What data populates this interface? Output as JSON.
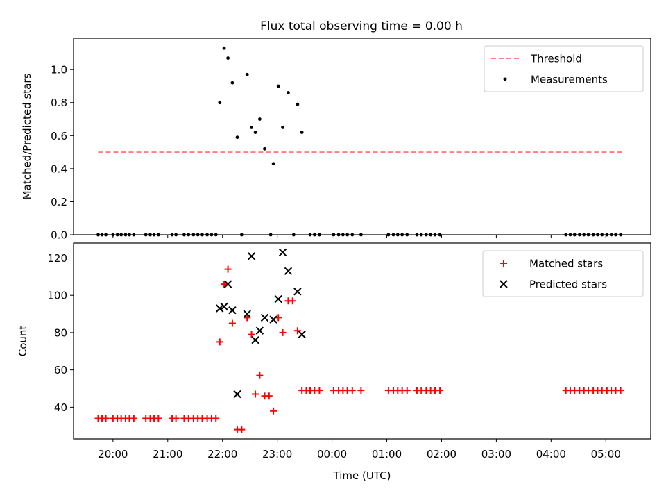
{
  "title": "Flux total observing time = 0.00 h",
  "chart_data": [
    {
      "type": "scatter",
      "title": "Flux total observing time = 0.00 h",
      "xlabel": "",
      "ylabel": "Matched/Predicted stars",
      "x_unit": "hours since 19:00 UTC",
      "xlim": [
        0.28,
        10.82
      ],
      "ylim": [
        0.0,
        1.19
      ],
      "yticks": [
        0.0,
        0.2,
        0.4,
        0.6,
        0.8,
        1.0
      ],
      "ytick_labels": [
        "0.0",
        "0.2",
        "0.4",
        "0.6",
        "0.8",
        "1.0"
      ],
      "legend_position": "top-right",
      "series": [
        {
          "name": "Threshold",
          "kind": "line",
          "style": "dashed",
          "color": "#ff7f7f",
          "points": [
            [
              0.73,
              0.5
            ],
            [
              10.3,
              0.5
            ]
          ]
        },
        {
          "name": "Measurements",
          "kind": "scatter",
          "marker": "dot",
          "color": "#000000",
          "points": [
            [
              0.73,
              0
            ],
            [
              0.8,
              0
            ],
            [
              0.87,
              0
            ],
            [
              1.0,
              0
            ],
            [
              1.08,
              0
            ],
            [
              1.15,
              0
            ],
            [
              1.23,
              0
            ],
            [
              1.3,
              0
            ],
            [
              1.38,
              0
            ],
            [
              1.6,
              0
            ],
            [
              1.68,
              0
            ],
            [
              1.75,
              0
            ],
            [
              1.83,
              0
            ],
            [
              2.08,
              0
            ],
            [
              2.15,
              0
            ],
            [
              2.3,
              0
            ],
            [
              2.38,
              0
            ],
            [
              2.47,
              0
            ],
            [
              2.55,
              0
            ],
            [
              2.63,
              0
            ],
            [
              2.72,
              0
            ],
            [
              2.8,
              0
            ],
            [
              2.88,
              0
            ],
            [
              2.95,
              0.8
            ],
            [
              3.03,
              1.13
            ],
            [
              3.1,
              1.07
            ],
            [
              3.18,
              0.92
            ],
            [
              3.27,
              0.59
            ],
            [
              3.45,
              0.97
            ],
            [
              3.53,
              0.65
            ],
            [
              3.6,
              0.62
            ],
            [
              3.68,
              0.7
            ],
            [
              3.77,
              0.52
            ],
            [
              3.93,
              0.43
            ],
            [
              4.02,
              0.9
            ],
            [
              4.1,
              0.65
            ],
            [
              4.2,
              0.86
            ],
            [
              4.37,
              0.79
            ],
            [
              4.45,
              0.62
            ],
            [
              3.35,
              0
            ],
            [
              3.88,
              0
            ],
            [
              4.3,
              0
            ],
            [
              4.6,
              0
            ],
            [
              4.68,
              0
            ],
            [
              4.77,
              0
            ],
            [
              5.03,
              0
            ],
            [
              5.12,
              0
            ],
            [
              5.2,
              0
            ],
            [
              5.28,
              0
            ],
            [
              5.37,
              0
            ],
            [
              5.53,
              0
            ],
            [
              6.03,
              0
            ],
            [
              6.12,
              0
            ],
            [
              6.2,
              0
            ],
            [
              6.28,
              0
            ],
            [
              6.37,
              0
            ],
            [
              6.55,
              0
            ],
            [
              6.63,
              0
            ],
            [
              6.72,
              0
            ],
            [
              6.8,
              0
            ],
            [
              6.88,
              0
            ],
            [
              6.97,
              0
            ],
            [
              9.27,
              0
            ],
            [
              9.35,
              0
            ],
            [
              9.43,
              0
            ],
            [
              9.52,
              0
            ],
            [
              9.6,
              0
            ],
            [
              9.68,
              0
            ],
            [
              9.77,
              0
            ],
            [
              9.85,
              0
            ],
            [
              9.93,
              0
            ],
            [
              10.02,
              0
            ],
            [
              10.1,
              0
            ],
            [
              10.18,
              0
            ],
            [
              10.27,
              0
            ]
          ]
        }
      ]
    },
    {
      "type": "scatter",
      "title": "",
      "xlabel": "Time (UTC)",
      "ylabel": "Count",
      "x_unit": "hours since 19:00 UTC",
      "xlim": [
        0.28,
        10.82
      ],
      "ylim": [
        23,
        128
      ],
      "xticks": [
        1,
        2,
        3,
        4,
        5,
        6,
        7,
        8,
        9,
        10
      ],
      "xtick_labels": [
        "20:00",
        "21:00",
        "22:00",
        "23:00",
        "00:00",
        "01:00",
        "02:00",
        "03:00",
        "04:00",
        "05:00"
      ],
      "yticks": [
        40,
        60,
        80,
        100,
        120
      ],
      "ytick_labels": [
        "40",
        "60",
        "80",
        "100",
        "120"
      ],
      "legend_position": "top-right",
      "series": [
        {
          "name": "Matched stars",
          "kind": "scatter",
          "marker": "plus",
          "color": "#ff0000",
          "points": [
            [
              0.73,
              34
            ],
            [
              0.8,
              34
            ],
            [
              0.87,
              34
            ],
            [
              1.0,
              34
            ],
            [
              1.08,
              34
            ],
            [
              1.15,
              34
            ],
            [
              1.23,
              34
            ],
            [
              1.3,
              34
            ],
            [
              1.38,
              34
            ],
            [
              1.6,
              34
            ],
            [
              1.68,
              34
            ],
            [
              1.75,
              34
            ],
            [
              1.83,
              34
            ],
            [
              2.08,
              34
            ],
            [
              2.15,
              34
            ],
            [
              2.3,
              34
            ],
            [
              2.38,
              34
            ],
            [
              2.47,
              34
            ],
            [
              2.55,
              34
            ],
            [
              2.63,
              34
            ],
            [
              2.72,
              34
            ],
            [
              2.8,
              34
            ],
            [
              2.88,
              34
            ],
            [
              2.95,
              75
            ],
            [
              3.03,
              106
            ],
            [
              3.1,
              114
            ],
            [
              3.18,
              85
            ],
            [
              3.27,
              28
            ],
            [
              3.35,
              28
            ],
            [
              3.45,
              88
            ],
            [
              3.53,
              79
            ],
            [
              3.6,
              47
            ],
            [
              3.68,
              57
            ],
            [
              3.77,
              46
            ],
            [
              3.85,
              46
            ],
            [
              3.93,
              38
            ],
            [
              4.02,
              88
            ],
            [
              4.1,
              80
            ],
            [
              4.2,
              97
            ],
            [
              4.28,
              97
            ],
            [
              4.37,
              81
            ],
            [
              4.45,
              49
            ],
            [
              4.53,
              49
            ],
            [
              4.6,
              49
            ],
            [
              4.68,
              49
            ],
            [
              4.77,
              49
            ],
            [
              5.03,
              49
            ],
            [
              5.12,
              49
            ],
            [
              5.2,
              49
            ],
            [
              5.28,
              49
            ],
            [
              5.37,
              49
            ],
            [
              5.53,
              49
            ],
            [
              6.03,
              49
            ],
            [
              6.12,
              49
            ],
            [
              6.2,
              49
            ],
            [
              6.28,
              49
            ],
            [
              6.37,
              49
            ],
            [
              6.55,
              49
            ],
            [
              6.63,
              49
            ],
            [
              6.72,
              49
            ],
            [
              6.8,
              49
            ],
            [
              6.88,
              49
            ],
            [
              6.97,
              49
            ],
            [
              9.27,
              49
            ],
            [
              9.35,
              49
            ],
            [
              9.43,
              49
            ],
            [
              9.52,
              49
            ],
            [
              9.6,
              49
            ],
            [
              9.68,
              49
            ],
            [
              9.77,
              49
            ],
            [
              9.85,
              49
            ],
            [
              9.93,
              49
            ],
            [
              10.02,
              49
            ],
            [
              10.1,
              49
            ],
            [
              10.18,
              49
            ],
            [
              10.27,
              49
            ]
          ]
        },
        {
          "name": "Predicted stars",
          "kind": "scatter",
          "marker": "x",
          "color": "#000000",
          "points": [
            [
              2.95,
              93
            ],
            [
              3.03,
              94
            ],
            [
              3.1,
              106
            ],
            [
              3.18,
              92
            ],
            [
              3.27,
              47
            ],
            [
              3.45,
              90
            ],
            [
              3.53,
              121
            ],
            [
              3.6,
              76
            ],
            [
              3.68,
              81
            ],
            [
              3.77,
              88
            ],
            [
              3.93,
              87
            ],
            [
              4.02,
              98
            ],
            [
              4.1,
              123
            ],
            [
              4.2,
              113
            ],
            [
              4.37,
              102
            ],
            [
              4.45,
              79
            ]
          ]
        }
      ]
    }
  ]
}
